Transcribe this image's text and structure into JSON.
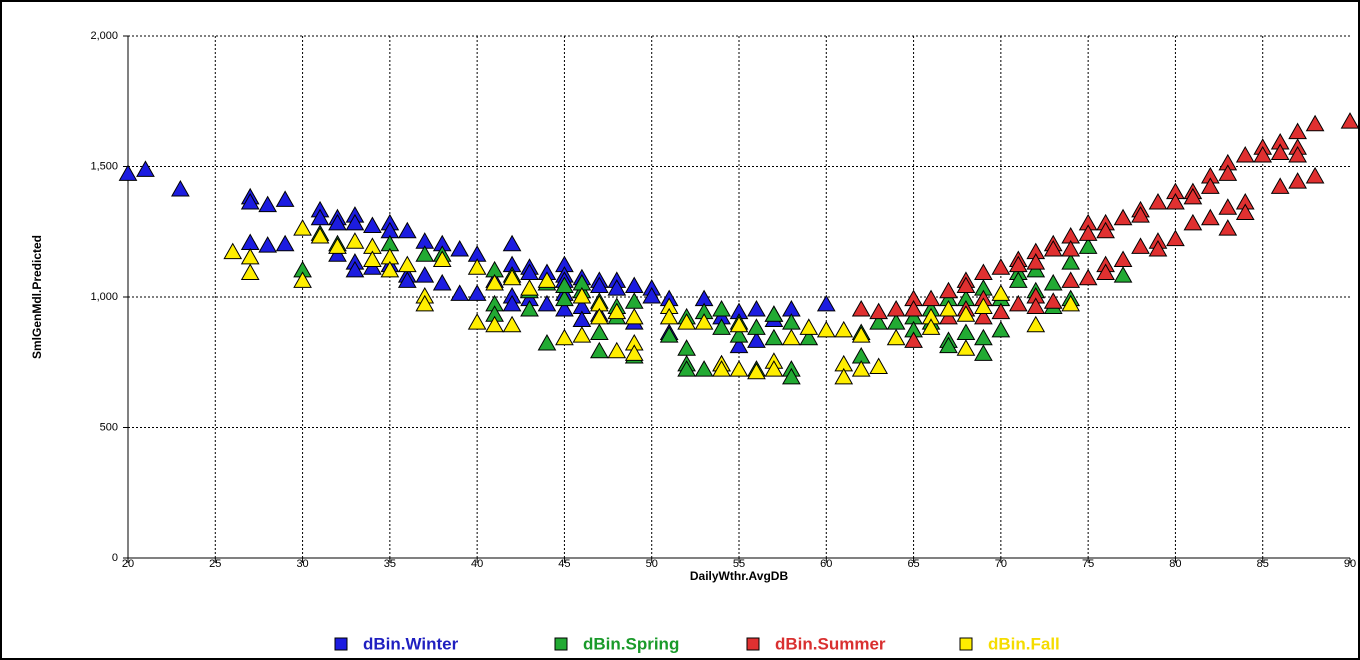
{
  "chart_data": {
    "type": "scatter",
    "x_label": "DailyWthr.AvgDB",
    "y_label": "SmlGenMdl.Predicted",
    "xlim": [
      20,
      90
    ],
    "ylim": [
      0,
      2000
    ],
    "xticks": [
      20,
      25,
      30,
      35,
      40,
      45,
      50,
      55,
      60,
      65,
      70,
      75,
      80,
      85,
      90
    ],
    "yticks": [
      0,
      500,
      {
        "value": 1000,
        "label": "1,000"
      },
      {
        "value": 1500,
        "label": "1,500"
      },
      {
        "value": 2000,
        "label": "2,000"
      }
    ],
    "grid": true,
    "legend": "bottom",
    "series": [
      {
        "name": "dBin.Winter",
        "color": "#1c1ce0",
        "text_color": "#1f1fc0",
        "x": [
          20,
          21,
          23,
          27,
          27,
          27,
          28,
          28,
          29,
          29,
          31,
          31,
          32,
          32,
          32,
          33,
          33,
          33,
          33,
          34,
          34,
          35,
          35,
          35,
          36,
          36,
          36,
          37,
          37,
          38,
          38,
          39,
          39,
          40,
          40,
          41,
          42,
          42,
          42,
          42,
          43,
          43,
          43,
          44,
          44,
          45,
          45,
          45,
          45,
          45,
          46,
          46,
          46,
          47,
          47,
          47,
          48,
          48,
          49,
          49,
          50,
          50,
          51,
          51,
          53,
          54,
          55,
          55,
          56,
          56,
          57,
          57,
          58,
          60
        ],
        "values": [
          1470,
          1485,
          1410,
          1380,
          1360,
          1205,
          1350,
          1195,
          1370,
          1200,
          1330,
          1300,
          1300,
          1280,
          1160,
          1310,
          1280,
          1130,
          1100,
          1270,
          1110,
          1280,
          1250,
          1120,
          1250,
          1080,
          1060,
          1210,
          1080,
          1200,
          1050,
          1180,
          1010,
          1160,
          1010,
          1060,
          1200,
          1120,
          1000,
          970,
          1110,
          1090,
          990,
          1090,
          970,
          1120,
          1080,
          1060,
          1010,
          950,
          1070,
          960,
          910,
          1060,
          1040,
          930,
          1060,
          1030,
          1040,
          900,
          1030,
          1000,
          990,
          860,
          990,
          920,
          940,
          810,
          950,
          830,
          930,
          910,
          950,
          970
        ]
      },
      {
        "name": "dBin.Spring",
        "color": "#22aa33",
        "text_color": "#1a9a2a",
        "x": [
          30,
          31,
          32,
          35,
          37,
          38,
          41,
          41,
          41,
          42,
          43,
          43,
          44,
          44,
          45,
          45,
          46,
          46,
          47,
          47,
          47,
          48,
          48,
          49,
          49,
          51,
          52,
          52,
          52,
          52,
          53,
          53,
          54,
          54,
          54,
          55,
          55,
          56,
          56,
          57,
          57,
          58,
          58,
          58,
          59,
          62,
          62,
          63,
          64,
          65,
          65,
          66,
          66,
          67,
          67,
          67,
          68,
          68,
          69,
          69,
          69,
          70,
          70,
          71,
          71,
          72,
          72,
          73,
          73,
          74,
          74,
          75,
          77
        ],
        "values": [
          1100,
          1240,
          1200,
          1200,
          1160,
          1160,
          1100,
          970,
          930,
          1080,
          950,
          1020,
          820,
          1050,
          990,
          1040,
          1020,
          1050,
          980,
          860,
          790,
          920,
          960,
          980,
          770,
          850,
          920,
          800,
          740,
          720,
          720,
          940,
          950,
          880,
          740,
          900,
          850,
          880,
          720,
          930,
          840,
          900,
          720,
          690,
          840,
          860,
          770,
          900,
          900,
          920,
          870,
          950,
          900,
          990,
          830,
          810,
          990,
          860,
          1030,
          840,
          780,
          990,
          870,
          1090,
          1060,
          1100,
          1020,
          1050,
          960,
          1130,
          990,
          1190,
          1080
        ]
      },
      {
        "name": "dBin.Summer",
        "color": "#e03030",
        "text_color": "#d93030",
        "x": [
          62,
          63,
          64,
          65,
          65,
          65,
          66,
          67,
          67,
          68,
          68,
          68,
          69,
          69,
          69,
          70,
          70,
          71,
          71,
          71,
          72,
          72,
          72,
          72,
          73,
          73,
          73,
          74,
          74,
          74,
          75,
          75,
          75,
          76,
          76,
          76,
          76,
          77,
          77,
          78,
          78,
          78,
          79,
          79,
          79,
          80,
          80,
          80,
          81,
          81,
          81,
          82,
          82,
          82,
          83,
          83,
          83,
          83,
          84,
          84,
          84,
          85,
          85,
          86,
          86,
          86,
          87,
          87,
          87,
          87,
          88,
          88,
          90
        ],
        "values": [
          950,
          940,
          950,
          990,
          950,
          830,
          990,
          1020,
          920,
          1060,
          1040,
          950,
          1090,
          990,
          920,
          1110,
          940,
          1140,
          1120,
          970,
          1170,
          1130,
          1000,
          960,
          1200,
          1180,
          980,
          1230,
          1180,
          1060,
          1280,
          1240,
          1070,
          1280,
          1250,
          1120,
          1090,
          1300,
          1140,
          1330,
          1310,
          1190,
          1360,
          1210,
          1180,
          1400,
          1360,
          1220,
          1400,
          1380,
          1280,
          1460,
          1420,
          1300,
          1510,
          1470,
          1340,
          1260,
          1540,
          1360,
          1320,
          1570,
          1540,
          1590,
          1550,
          1420,
          1630,
          1570,
          1540,
          1440,
          1660,
          1460,
          1670
        ]
      },
      {
        "name": "dBin.Fall",
        "color": "#ffee00",
        "text_color": "#f5dc00",
        "x": [
          26,
          27,
          27,
          30,
          30,
          31,
          32,
          33,
          34,
          34,
          35,
          35,
          36,
          37,
          37,
          38,
          40,
          40,
          41,
          41,
          42,
          42,
          43,
          44,
          45,
          46,
          46,
          47,
          47,
          48,
          48,
          49,
          49,
          49,
          51,
          51,
          52,
          53,
          54,
          54,
          55,
          55,
          56,
          57,
          57,
          58,
          59,
          60,
          61,
          61,
          61,
          62,
          62,
          63,
          64,
          66,
          66,
          67,
          68,
          68,
          69,
          70,
          72,
          74
        ],
        "values": [
          1170,
          1150,
          1090,
          1260,
          1060,
          1230,
          1190,
          1210,
          1190,
          1140,
          1150,
          1100,
          1120,
          1000,
          970,
          1140,
          1110,
          900,
          1050,
          890,
          1070,
          890,
          1030,
          1060,
          840,
          850,
          1000,
          970,
          920,
          940,
          790,
          920,
          820,
          780,
          960,
          920,
          900,
          900,
          740,
          720,
          890,
          720,
          710,
          750,
          720,
          840,
          880,
          870,
          870,
          740,
          690,
          850,
          720,
          730,
          840,
          920,
          880,
          950,
          930,
          800,
          960,
          1010,
          890,
          970
        ]
      }
    ]
  }
}
